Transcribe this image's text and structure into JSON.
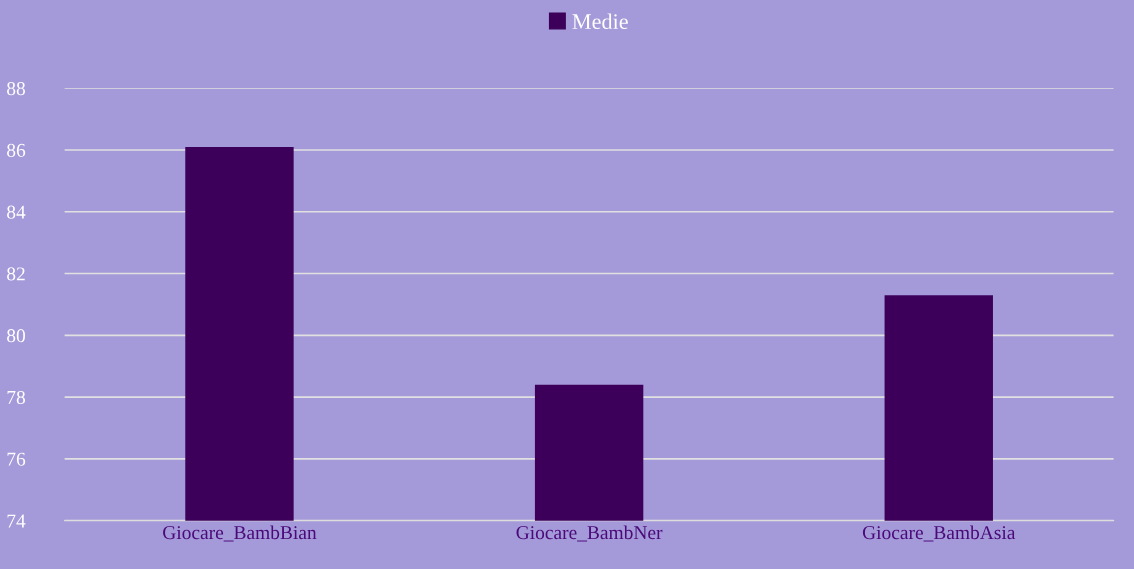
{
  "chart_data": {
    "type": "bar",
    "categories": [
      "Giocare_BambBian",
      "Giocare_BambNer",
      "Giocare_BambAsia"
    ],
    "series": [
      {
        "name": "Medie",
        "color": "#3d005a",
        "values": [
          86.1,
          78.4,
          81.3
        ]
      }
    ],
    "ylim": [
      74,
      88
    ],
    "yticks": [
      74,
      76,
      78,
      80,
      82,
      84,
      86,
      88
    ],
    "grid": "y",
    "legend": "top"
  }
}
